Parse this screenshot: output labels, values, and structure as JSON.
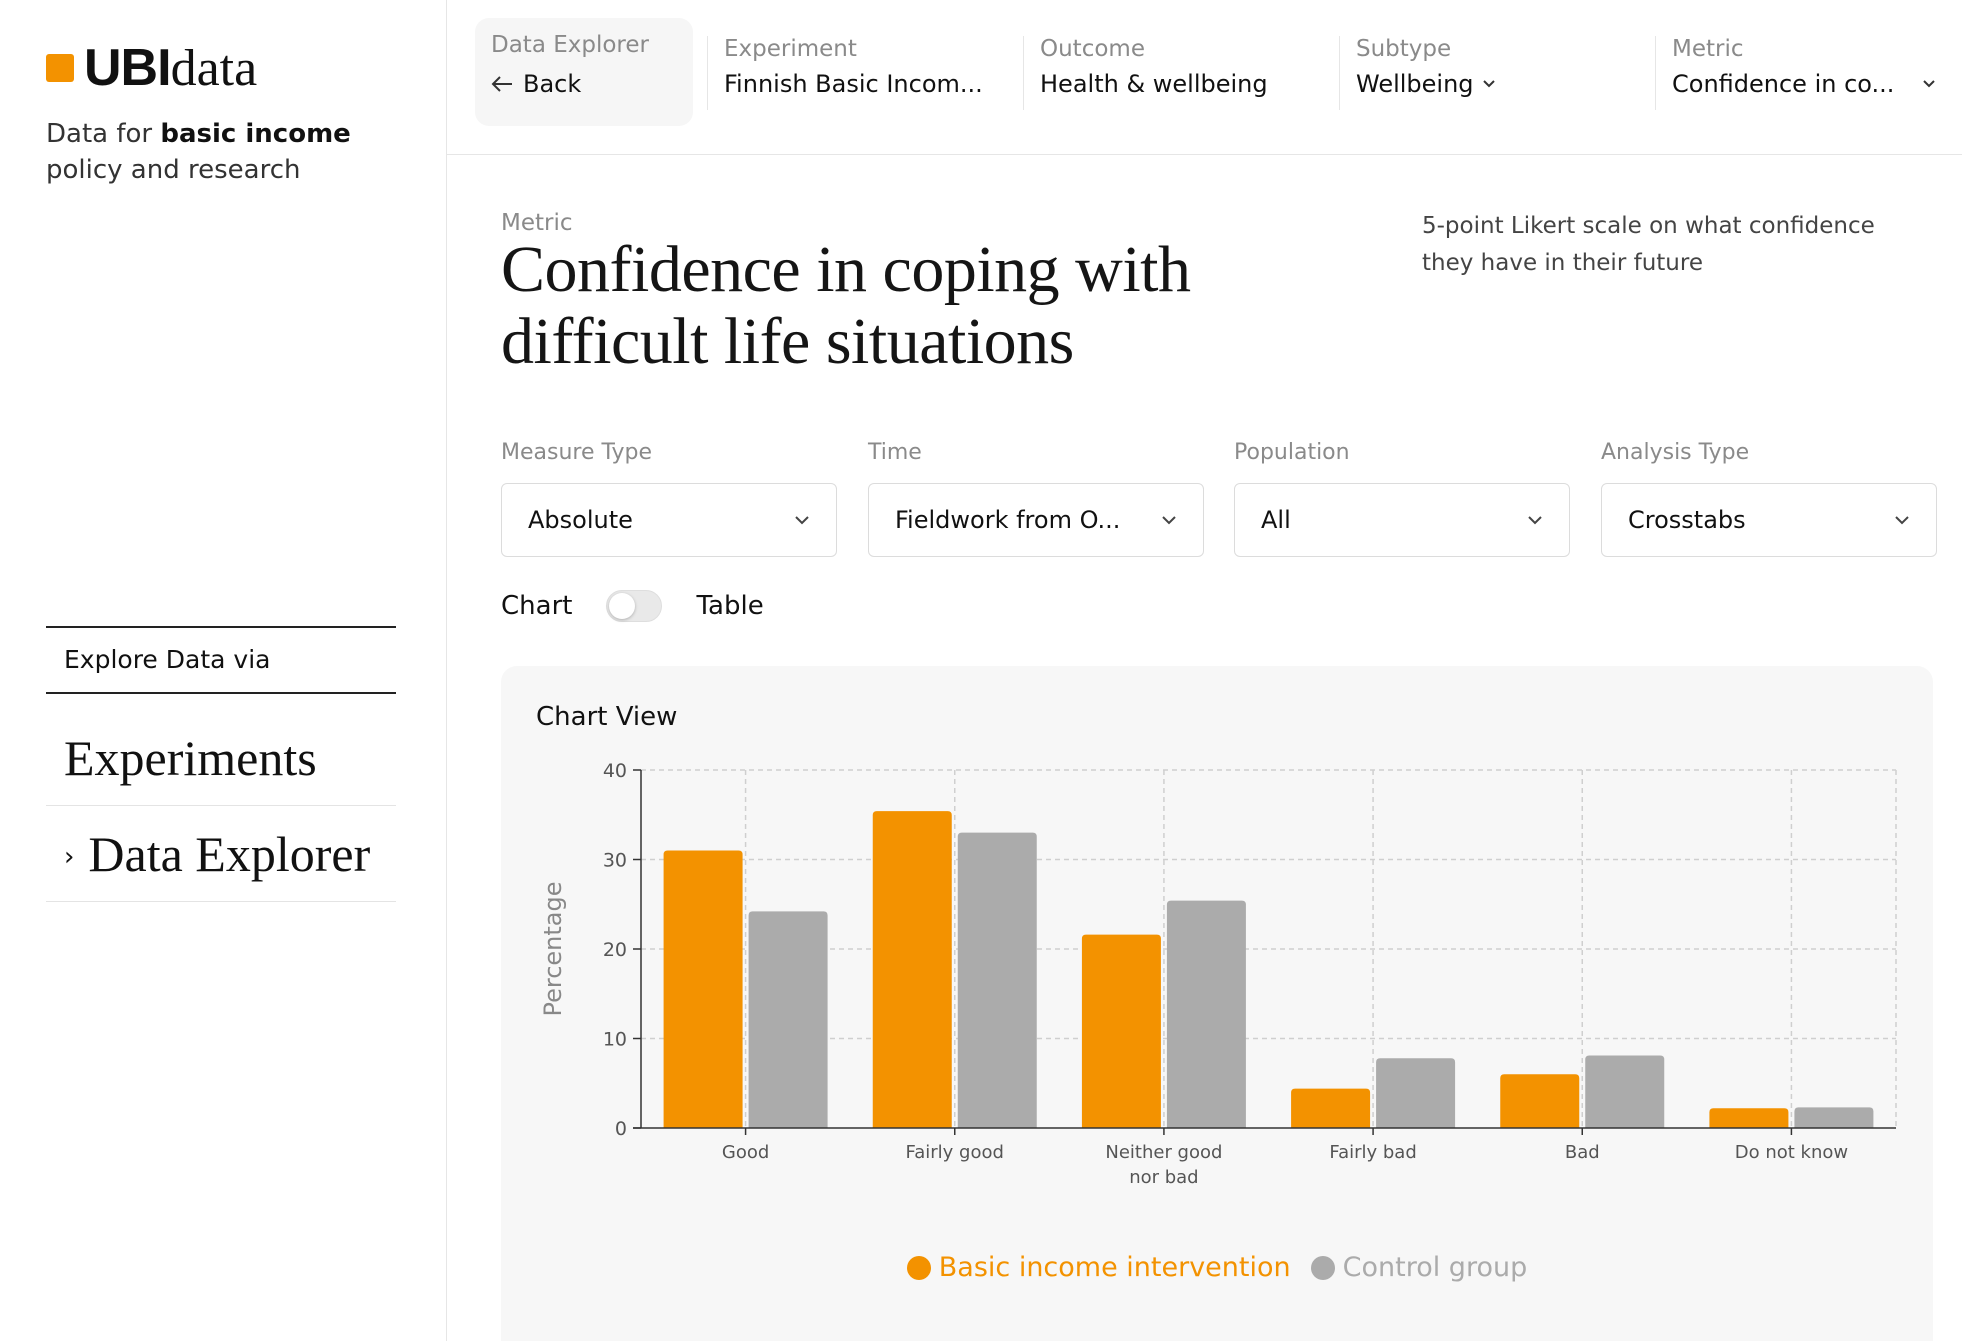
{
  "brand": {
    "logo_bold": "UBI",
    "logo_light": "data",
    "accent_color": "#f39200"
  },
  "sidebar": {
    "tagline_prefix": "Data for ",
    "tagline_bold": "basic income",
    "tagline_suffix": "policy and research",
    "explore_label": "Explore Data via",
    "nav": [
      {
        "label": "Experiments"
      },
      {
        "label": "Data Explorer",
        "icon": "chevron-right-icon"
      }
    ]
  },
  "breadcrumb": {
    "back_card": {
      "label": "Data Explorer",
      "back": "Back",
      "icon": "arrow-left-icon"
    },
    "items": [
      {
        "label": "Experiment",
        "value": "Finnish Basic Incom..."
      },
      {
        "label": "Outcome",
        "value": "Health & wellbeing"
      },
      {
        "label": "Subtype",
        "value": "Wellbeing"
      },
      {
        "label": "Metric",
        "value": "Confidence in co..."
      }
    ]
  },
  "main": {
    "metric_label": "Metric",
    "title_line1": "Confidence in coping with",
    "title_line2": "difficult life situations",
    "description": "5-point Likert scale on what confidence they have in their future"
  },
  "filters": [
    {
      "label": "Measure Type",
      "value": "Absolute"
    },
    {
      "label": "Time",
      "value": "Fieldwork from O..."
    },
    {
      "label": "Population",
      "value": "All"
    },
    {
      "label": "Analysis Type",
      "value": "Crosstabs"
    }
  ],
  "view_toggle": {
    "left": "Chart",
    "right": "Table",
    "state": "off"
  },
  "chart_panel": {
    "title": "Chart View"
  },
  "chart_data": {
    "type": "bar",
    "categories": [
      "Good",
      "Fairly good",
      "Neither good\nnor bad",
      "Fairly bad",
      "Bad",
      "Do not know"
    ],
    "series": [
      {
        "name": "Basic income intervention",
        "color": "#f39200",
        "values": [
          31.0,
          35.4,
          21.6,
          4.4,
          6.0,
          2.2
        ]
      },
      {
        "name": "Control group",
        "color": "#ababab",
        "values": [
          24.2,
          33.0,
          25.4,
          7.8,
          8.1,
          2.3
        ]
      }
    ],
    "ylabel": "Percentage",
    "ylim": [
      0,
      40
    ],
    "yticks": [
      0,
      10,
      20,
      30,
      40
    ],
    "grid": true,
    "legend": "bottom-center"
  }
}
